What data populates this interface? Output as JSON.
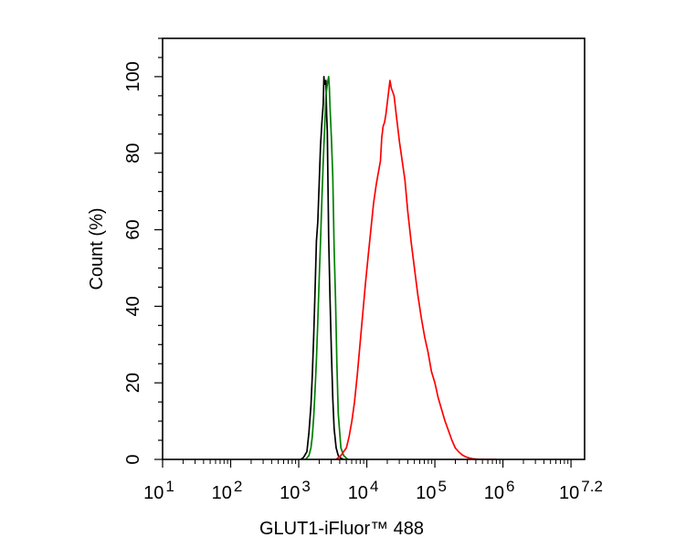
{
  "chart_data": {
    "type": "line",
    "title": "",
    "xlabel": "GLUT1-iFluor™ 488",
    "ylabel": "Count  (%)",
    "x_scale": "log10",
    "xlim": [
      1,
      7.2
    ],
    "ylim": [
      0,
      110
    ],
    "x_ticks": [
      {
        "base": "10",
        "exp": "1"
      },
      {
        "base": "10",
        "exp": "2"
      },
      {
        "base": "10",
        "exp": "3"
      },
      {
        "base": "10",
        "exp": "4"
      },
      {
        "base": "10",
        "exp": "5"
      },
      {
        "base": "10",
        "exp": "6"
      },
      {
        "base": "10",
        "exp": "7.2"
      }
    ],
    "y_ticks": [
      "0",
      "20",
      "40",
      "60",
      "80",
      "100"
    ],
    "grid": false,
    "legend": "none",
    "series": [
      {
        "color": "#000000",
        "x": [
          3.03,
          3.07,
          3.12,
          3.15,
          3.18,
          3.2,
          3.22,
          3.24,
          3.26,
          3.28,
          3.3,
          3.32,
          3.34,
          3.36,
          3.37,
          3.38,
          3.4,
          3.41,
          3.42,
          3.43,
          3.44,
          3.46,
          3.48,
          3.5,
          3.52,
          3.55,
          3.58,
          3.62,
          3.66
        ],
        "y": [
          0,
          0.5,
          2,
          7,
          14,
          22,
          32,
          44,
          57,
          62,
          72,
          82,
          88,
          93,
          100,
          98,
          99,
          90,
          86,
          71,
          58,
          42,
          28,
          16,
          8,
          3,
          1,
          0.3,
          0
        ]
      },
      {
        "color": "#008000",
        "x": [
          3.1,
          3.15,
          3.18,
          3.2,
          3.22,
          3.24,
          3.26,
          3.28,
          3.3,
          3.32,
          3.34,
          3.36,
          3.38,
          3.4,
          3.42,
          3.44,
          3.45,
          3.46,
          3.48,
          3.5,
          3.52,
          3.54,
          3.56,
          3.58,
          3.62,
          3.66,
          3.72
        ],
        "y": [
          0,
          1,
          3,
          6,
          11,
          18,
          26,
          36,
          47,
          57,
          68,
          78,
          86,
          95,
          98,
          100,
          97,
          92,
          84,
          74,
          55,
          42,
          25,
          12,
          3,
          1,
          0
        ]
      },
      {
        "color": "#ff0000",
        "x": [
          3.55,
          3.62,
          3.7,
          3.74,
          3.78,
          3.82,
          3.86,
          3.9,
          3.94,
          3.98,
          4.02,
          4.06,
          4.1,
          4.14,
          4.18,
          4.2,
          4.22,
          4.24,
          4.26,
          4.28,
          4.3,
          4.32,
          4.34,
          4.36,
          4.4,
          4.44,
          4.48,
          4.52,
          4.56,
          4.6,
          4.65,
          4.7,
          4.75,
          4.8,
          4.85,
          4.9,
          4.95,
          5.0,
          5.05,
          5.1,
          5.15,
          5.2,
          5.25,
          5.3,
          5.35,
          5.4,
          5.45,
          5.5,
          5.55,
          5.6,
          5.65,
          5.7,
          5.75,
          5.82,
          5.9
        ],
        "y": [
          0,
          1,
          3,
          6,
          10,
          15,
          22,
          30,
          38,
          46,
          53,
          60,
          67,
          72,
          76,
          78,
          84,
          87,
          88,
          90,
          93,
          96,
          99,
          97,
          95,
          89,
          83,
          78,
          73,
          65,
          57,
          50,
          43,
          37,
          32,
          28,
          23,
          20,
          16,
          13,
          10,
          7.5,
          5,
          3,
          2,
          1.2,
          0.7,
          0.4,
          0.2,
          0.1,
          0.05,
          0.02,
          0.01,
          0,
          0
        ]
      }
    ]
  }
}
